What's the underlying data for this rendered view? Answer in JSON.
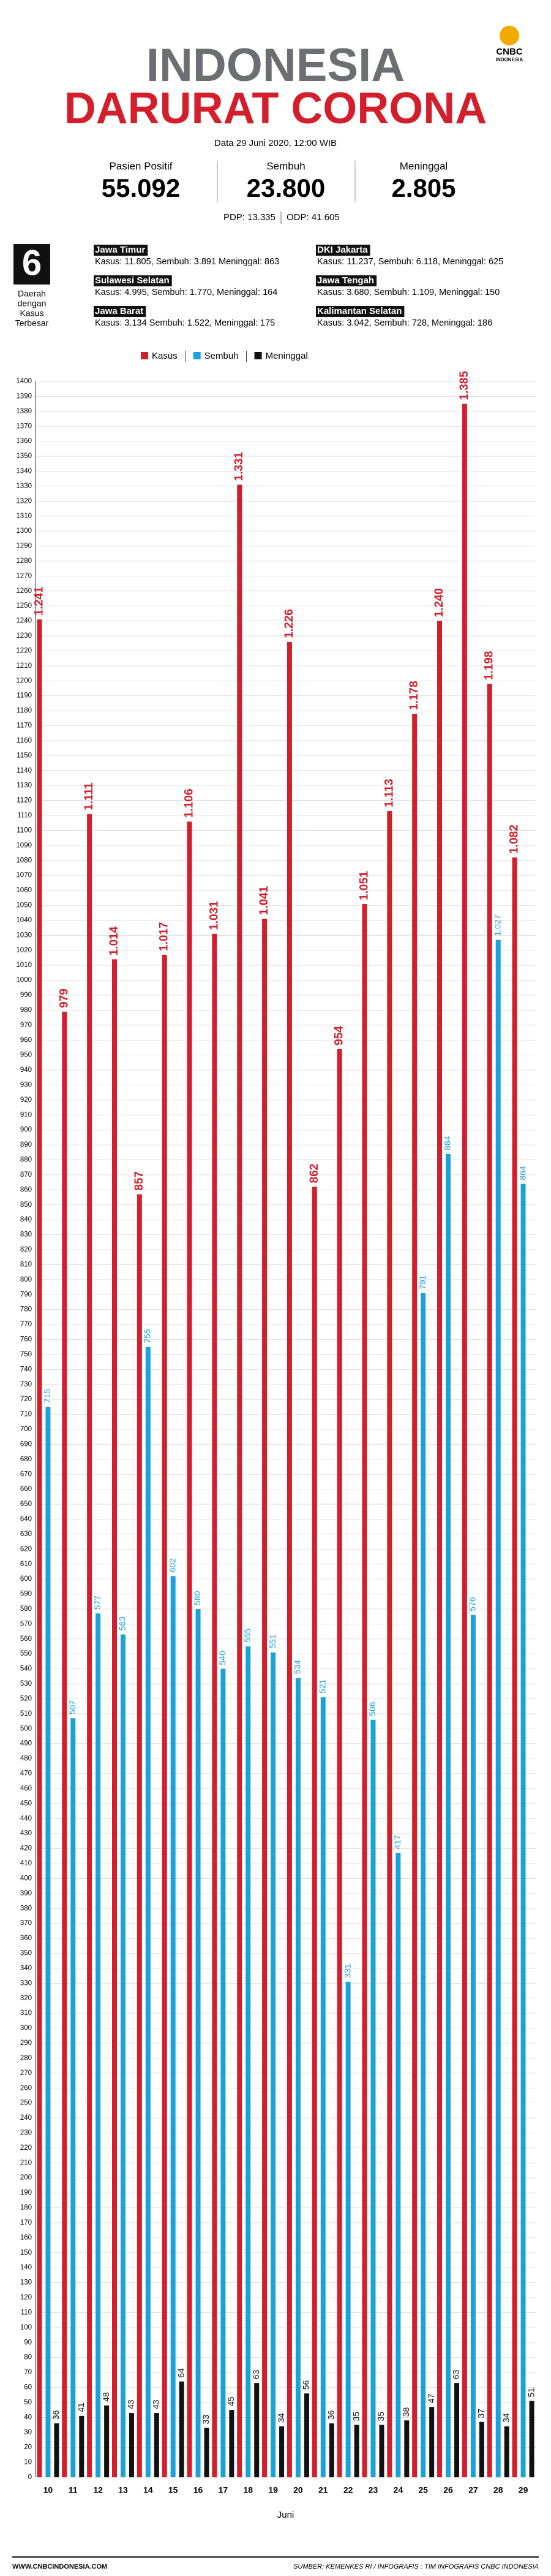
{
  "header": {
    "title": "INDONESIA",
    "subtitle": "DARURAT CORONA",
    "date": "Data 29 Juni 2020, 12:00 WIB",
    "logo": "CNBC",
    "logo_sub": "INDONESIA"
  },
  "stats": [
    {
      "label": "Pasien Positif",
      "value": "55.092"
    },
    {
      "label": "Sembuh",
      "value": "23.800"
    },
    {
      "label": "Meninggal",
      "value": "2.805"
    }
  ],
  "pdp": "PDP: 13.335",
  "odp": "ODP: 41.605",
  "regions": {
    "count": "6",
    "caption": [
      "Daerah",
      "dengan",
      "Kasus",
      "Terbesar"
    ],
    "items": [
      {
        "name": "Jawa Timur",
        "detail": "Kasus: 11.805, Sembuh: 3.891 Meninggal: 863"
      },
      {
        "name": "DKI Jakarta",
        "detail": "Kasus: 11.237, Sembuh: 6.118, Meninggal: 625"
      },
      {
        "name": "Sulawesi Selatan",
        "detail": "Kasus: 4.995, Sembuh: 1.770, Meninggal: 164"
      },
      {
        "name": "Jawa Tengah",
        "detail": "Kasus: 3.680, Sembuh: 1.109, Meninggal: 150"
      },
      {
        "name": "Jawa Barat",
        "detail": "Kasus: 3.134 Sembuh: 1.522, Meninggal: 175"
      },
      {
        "name": "Kalimantan Selatan",
        "detail": "Kasus: 3.042, Sembuh: 728, Meninggal: 186"
      }
    ]
  },
  "chart_data": {
    "type": "bar",
    "x_label": "Juni",
    "categories": [
      "10",
      "11",
      "12",
      "13",
      "14",
      "15",
      "16",
      "17",
      "18",
      "19",
      "20",
      "21",
      "22",
      "23",
      "24",
      "25",
      "26",
      "27",
      "28",
      "29"
    ],
    "ylim": [
      0,
      1400
    ],
    "yticks": [
      0,
      10,
      20,
      30,
      40,
      50,
      60,
      70,
      80,
      90,
      100,
      110,
      120,
      130,
      140,
      150,
      160,
      170,
      180,
      190,
      200,
      210,
      220,
      230,
      240,
      250,
      260,
      270,
      280,
      290,
      300,
      310,
      320,
      330,
      340,
      350,
      360,
      370,
      380,
      390,
      400,
      410,
      420,
      430,
      440,
      450,
      460,
      470,
      480,
      490,
      500,
      510,
      520,
      530,
      540,
      550,
      560,
      570,
      580,
      590,
      600,
      610,
      620,
      630,
      640,
      650,
      660,
      670,
      680,
      690,
      700,
      710,
      720,
      730,
      740,
      750,
      760,
      770,
      780,
      790,
      800,
      810,
      820,
      830,
      840,
      850,
      860,
      870,
      880,
      890,
      900,
      910,
      920,
      930,
      940,
      950,
      960,
      970,
      980,
      990,
      1000,
      1010,
      1020,
      1030,
      1040,
      1050,
      1060,
      1070,
      1080,
      1090,
      1100,
      1110,
      1120,
      1130,
      1140,
      1150,
      1160,
      1170,
      1180,
      1190,
      1200,
      1210,
      1220,
      1230,
      1240,
      1250,
      1260,
      1270,
      1280,
      1290,
      1300,
      1310,
      1320,
      1330,
      1340,
      1350,
      1360,
      1370,
      1380,
      1390,
      1400
    ],
    "grid": true,
    "series": [
      {
        "name": "Kasus",
        "color": "#d21f2b",
        "values": [
          1241,
          979,
          1111,
          1014,
          857,
          1017,
          1106,
          1031,
          1331,
          1041,
          1226,
          862,
          954,
          1051,
          1113,
          1178,
          1240,
          1385,
          1198,
          1082
        ],
        "value_labels": [
          "1.241",
          "979",
          "1.111",
          "1.014",
          "857",
          "1.017",
          "1.106",
          "1.031",
          "1.331",
          "1.041",
          "1.226",
          "862",
          "954",
          "1.051",
          "1.113",
          "1.178",
          "1.240",
          "1.385",
          "1.198",
          "1.082"
        ]
      },
      {
        "name": "Sembuh",
        "color": "#1aa3d9",
        "values": [
          715,
          507,
          577,
          563,
          755,
          602,
          580,
          540,
          555,
          551,
          534,
          521,
          331,
          506,
          417,
          791,
          884,
          576,
          1027,
          864
        ],
        "value_labels": [
          "715",
          "507",
          "577",
          "563",
          "755",
          "602",
          "580",
          "540",
          "555",
          "551",
          "534",
          "521",
          "331",
          "506",
          "417",
          "791",
          "884",
          "576",
          "1.027",
          "864"
        ]
      },
      {
        "name": "Meninggal",
        "color": "#111111",
        "values": [
          36,
          41,
          48,
          43,
          43,
          64,
          33,
          45,
          63,
          34,
          56,
          36,
          35,
          35,
          38,
          47,
          63,
          37,
          34,
          51
        ]
      }
    ]
  },
  "footer": {
    "left": "WWW.CNBCINDONESIA.COM",
    "right": "SUMBER: KEMENKES RI / INFOGRAFIS : TIM INFOGRAFIS CNBC INDONESIA"
  }
}
